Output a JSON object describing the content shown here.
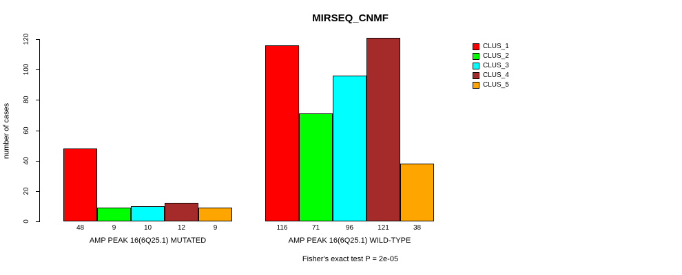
{
  "title": "MIRSEQ_CNMF",
  "chart_data": {
    "type": "bar",
    "title": "MIRSEQ_CNMF",
    "ylabel": "number of cases",
    "xlabel": "",
    "ylim": [
      0,
      120
    ],
    "yticks": [
      0,
      20,
      40,
      60,
      80,
      100,
      120
    ],
    "grid": false,
    "legend_position": "right",
    "series_names": [
      "CLUS_1",
      "CLUS_2",
      "CLUS_3",
      "CLUS_4",
      "CLUS_5"
    ],
    "colors": [
      "#FF0000",
      "#00FF00",
      "#00FFFF",
      "#A52A2A",
      "#FFA500"
    ],
    "bar_border_color": "#000000",
    "groups": [
      {
        "label": "AMP PEAK 16(6Q25.1) MUTATED",
        "values": [
          48,
          9,
          10,
          12,
          9
        ]
      },
      {
        "label": "AMP PEAK 16(6Q25.1) WILD-TYPE",
        "values": [
          116,
          71,
          96,
          121,
          38
        ]
      }
    ],
    "annotation": "Fisher's exact test P = 2e-05"
  },
  "legend": {
    "items": [
      {
        "label": "CLUS_1",
        "color": "#FF0000"
      },
      {
        "label": "CLUS_2",
        "color": "#00FF00"
      },
      {
        "label": "CLUS_3",
        "color": "#00FFFF"
      },
      {
        "label": "CLUS_4",
        "color": "#A52A2A"
      },
      {
        "label": "CLUS_5",
        "color": "#FFA500"
      }
    ]
  }
}
